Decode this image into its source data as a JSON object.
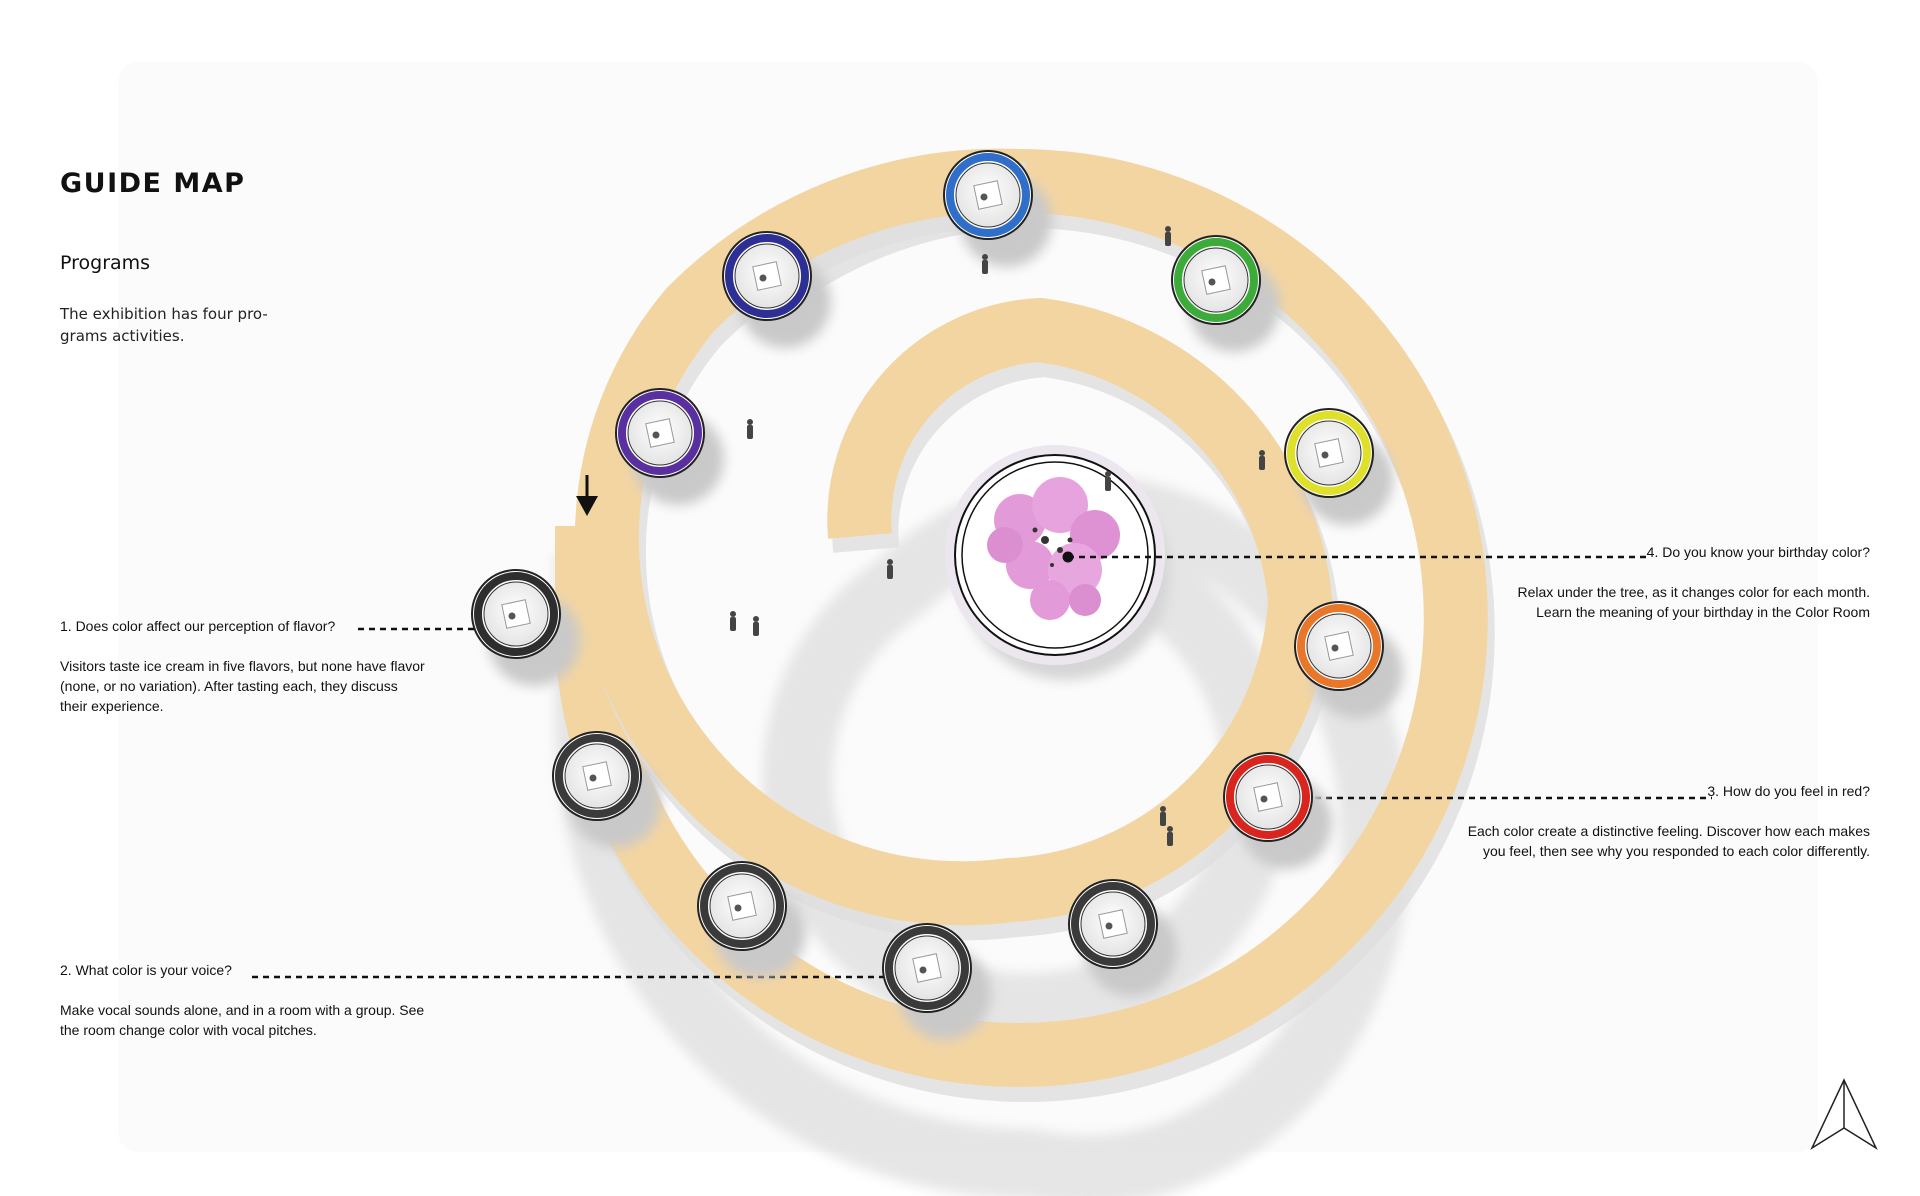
{
  "header": {
    "title": "GUIDE MAP",
    "subtitle": "Programs",
    "intro_lines": [
      "The exhibition has four pro-",
      "grams activities."
    ]
  },
  "programs": [
    {
      "question": "1. Does color affect our perception of flavor?",
      "description_lines": [
        "Visitors taste ice cream in five flavors, but none have flavor",
        "(none, or no variation).  After tasting each, they discuss",
        "their experience."
      ]
    },
    {
      "question": "2. What color is your voice?",
      "description_lines": [
        "Make vocal sounds alone, and in a room with a group.  See",
        "the room change color with vocal pitches."
      ]
    },
    {
      "question": "3. How do you feel in red?",
      "description_lines": [
        "Each color create a distinctive feeling.  Discover how each makes",
        "you feel, then see why you responded to each color differently."
      ]
    },
    {
      "question": "4. Do you know your birthday color?",
      "description_lines": [
        "Relax under the tree, as it changes color for each month.",
        "Learn the meaning of your birthday in the Color Room"
      ]
    }
  ],
  "rooms": [
    {
      "name": "blue-room",
      "color": "#2f6fc9"
    },
    {
      "name": "green-room",
      "color": "#3cab3a"
    },
    {
      "name": "yellow-room",
      "color": "#dfe02a"
    },
    {
      "name": "orange-room",
      "color": "#e8772a"
    },
    {
      "name": "red-room",
      "color": "#d8261f"
    },
    {
      "name": "gray-room-1",
      "color": "#3a3a3a"
    },
    {
      "name": "gray-room-2",
      "color": "#3a3a3a"
    },
    {
      "name": "gray-room-3",
      "color": "#3a3a3a"
    },
    {
      "name": "gray-room-4",
      "color": "#3a3a3a"
    },
    {
      "name": "flavor-room",
      "color": "#2e2e2e"
    },
    {
      "name": "violet-room",
      "color": "#5a2fa0"
    },
    {
      "name": "indigo-room",
      "color": "#2d2f95"
    }
  ],
  "colors": {
    "path": "#f3d5a2",
    "path_shadow": "#d9d9d9",
    "tree_blossom": "#e39ad8",
    "leader_line": "#111111"
  },
  "icons": {
    "entrance": "down-arrow-icon",
    "north": "north-arrow-icon",
    "visitor": "visitor-figure-icon",
    "tree": "cherry-tree-icon"
  }
}
